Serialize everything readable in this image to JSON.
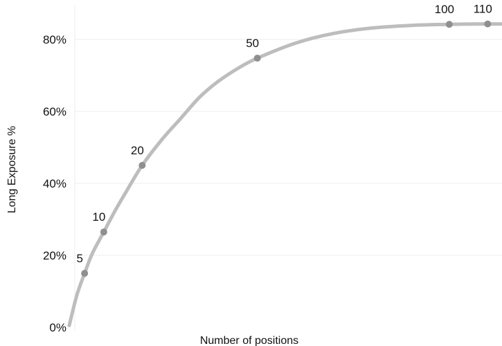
{
  "chart_data": {
    "type": "line",
    "title": "",
    "xlabel": "Number of positions",
    "ylabel": "Long Exposure %",
    "ylim": [
      0,
      85
    ],
    "xlim": [
      1,
      115
    ],
    "y_ticks": [
      {
        "value": 0,
        "label": "0%"
      },
      {
        "value": 20,
        "label": "20%"
      },
      {
        "value": 40,
        "label": "40%"
      },
      {
        "value": 60,
        "label": "60%"
      },
      {
        "value": 80,
        "label": "80%"
      }
    ],
    "grid": true,
    "legend": "none",
    "colors": {
      "line": "#bdbdbd",
      "marker": "#8f8f8f",
      "grid": "#eeeeee"
    },
    "series": [
      {
        "values": [
          {
            "x": 1,
            "y": 0.5
          },
          {
            "x": 3,
            "y": 9
          },
          {
            "x": 5,
            "y": 15
          },
          {
            "x": 7,
            "y": 20.5
          },
          {
            "x": 10,
            "y": 26.5
          },
          {
            "x": 13,
            "y": 32.5
          },
          {
            "x": 16,
            "y": 38
          },
          {
            "x": 20,
            "y": 45
          },
          {
            "x": 25,
            "y": 52
          },
          {
            "x": 30,
            "y": 58
          },
          {
            "x": 35,
            "y": 64
          },
          {
            "x": 40,
            "y": 68.5
          },
          {
            "x": 45,
            "y": 72
          },
          {
            "x": 50,
            "y": 74.8
          },
          {
            "x": 60,
            "y": 79
          },
          {
            "x": 70,
            "y": 81.7
          },
          {
            "x": 80,
            "y": 83.2
          },
          {
            "x": 90,
            "y": 83.9
          },
          {
            "x": 100,
            "y": 84.2
          },
          {
            "x": 110,
            "y": 84.3
          },
          {
            "x": 115,
            "y": 84.3
          }
        ]
      }
    ],
    "labeled_points": [
      {
        "x": 5,
        "y": 15,
        "label": "5"
      },
      {
        "x": 10,
        "y": 26.5,
        "label": "10"
      },
      {
        "x": 20,
        "y": 45,
        "label": "20"
      },
      {
        "x": 50,
        "y": 74.8,
        "label": "50"
      },
      {
        "x": 100,
        "y": 84.2,
        "label": "100"
      },
      {
        "x": 110,
        "y": 84.3,
        "label": "110"
      }
    ]
  }
}
